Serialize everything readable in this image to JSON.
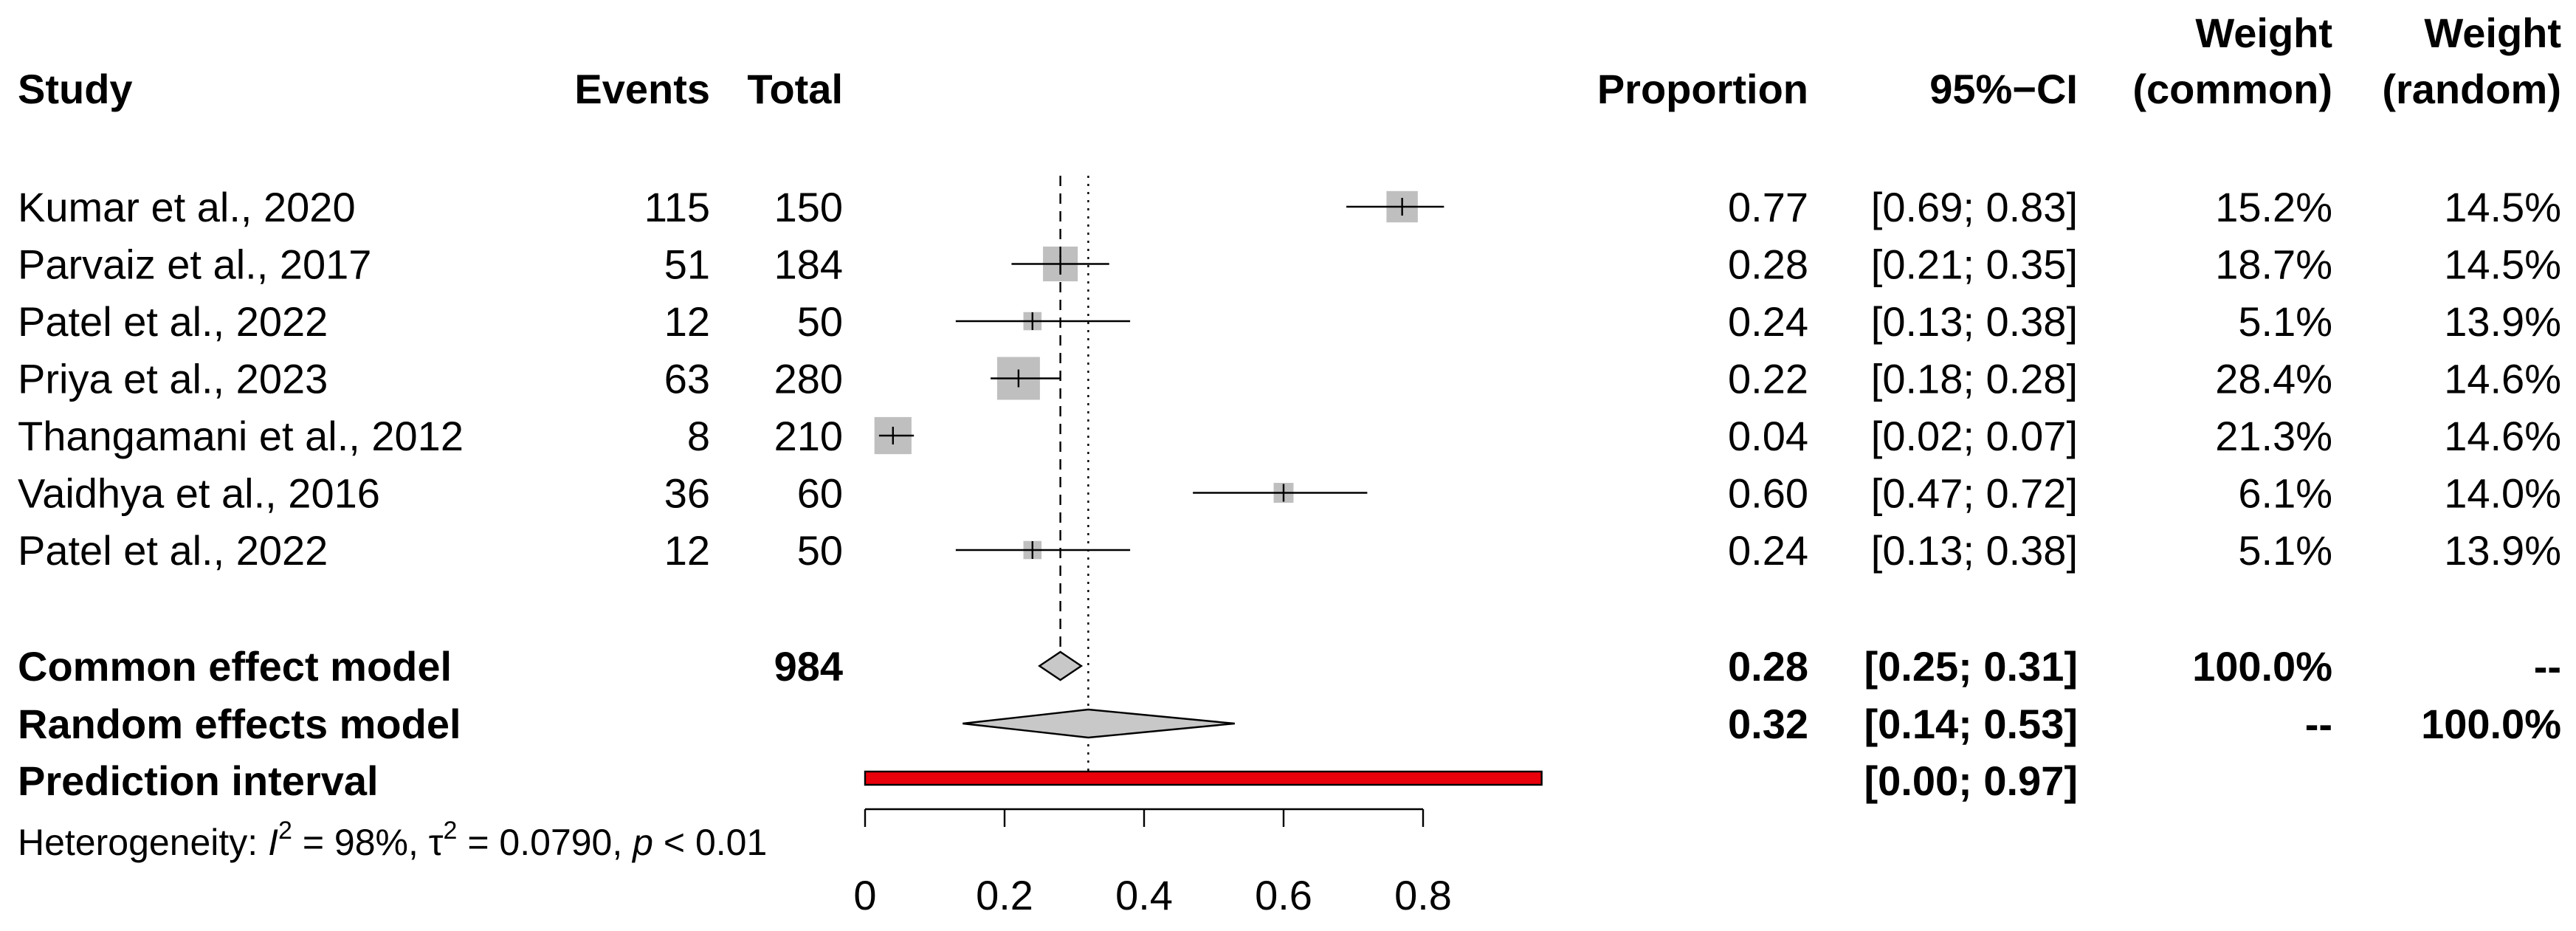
{
  "chart_data": {
    "type": "forest",
    "headers": {
      "study": "Study",
      "events": "Events",
      "total": "Total",
      "proportion": "Proportion",
      "ci": "95%−CI",
      "weight_common_top": "Weight",
      "weight_common_bottom": "(common)",
      "weight_random_top": "Weight",
      "weight_random_bottom": "(random)"
    },
    "studies": [
      {
        "study": "Kumar et al., 2020",
        "events": "115",
        "total": "150",
        "proportion": "0.77",
        "ci": "[0.69; 0.83]",
        "w_common": "15.2%",
        "w_random": "14.5%",
        "est": 0.77,
        "lo": 0.69,
        "hi": 0.83,
        "weight": 15.2
      },
      {
        "study": "Parvaiz et al., 2017",
        "events": "51",
        "total": "184",
        "proportion": "0.28",
        "ci": "[0.21; 0.35]",
        "w_common": "18.7%",
        "w_random": "14.5%",
        "est": 0.28,
        "lo": 0.21,
        "hi": 0.35,
        "weight": 18.7
      },
      {
        "study": "Patel et al., 2022",
        "events": "12",
        "total": "50",
        "proportion": "0.24",
        "ci": "[0.13; 0.38]",
        "w_common": "5.1%",
        "w_random": "13.9%",
        "est": 0.24,
        "lo": 0.13,
        "hi": 0.38,
        "weight": 5.1
      },
      {
        "study": "Priya et al., 2023",
        "events": "63",
        "total": "280",
        "proportion": "0.22",
        "ci": "[0.18; 0.28]",
        "w_common": "28.4%",
        "w_random": "14.6%",
        "est": 0.22,
        "lo": 0.18,
        "hi": 0.28,
        "weight": 28.4
      },
      {
        "study": "Thangamani et al., 2012",
        "events": "8",
        "total": "210",
        "proportion": "0.04",
        "ci": "[0.02; 0.07]",
        "w_common": "21.3%",
        "w_random": "14.6%",
        "est": 0.04,
        "lo": 0.02,
        "hi": 0.07,
        "weight": 21.3
      },
      {
        "study": "Vaidhya et al., 2016",
        "events": "36",
        "total": "60",
        "proportion": "0.60",
        "ci": "[0.47; 0.72]",
        "w_common": "6.1%",
        "w_random": "14.0%",
        "est": 0.6,
        "lo": 0.47,
        "hi": 0.72,
        "weight": 6.1
      },
      {
        "study": "Patel et al., 2022",
        "events": "12",
        "total": "50",
        "proportion": "0.24",
        "ci": "[0.13; 0.38]",
        "w_common": "5.1%",
        "w_random": "13.9%",
        "est": 0.24,
        "lo": 0.13,
        "hi": 0.38,
        "weight": 5.1
      }
    ],
    "common": {
      "label": "Common effect model",
      "total": "984",
      "proportion": "0.28",
      "ci": "[0.25; 0.31]",
      "w_common": "100.0%",
      "w_random": "--",
      "est": 0.28,
      "lo": 0.25,
      "hi": 0.31
    },
    "random": {
      "label": "Random effects model",
      "proportion": "0.32",
      "ci": "[0.14; 0.53]",
      "w_common": "--",
      "w_random": "100.0%",
      "est": 0.32,
      "lo": 0.14,
      "hi": 0.53
    },
    "prediction": {
      "label": "Prediction interval",
      "ci": "[0.00; 0.97]",
      "lo": 0.0,
      "hi": 0.97,
      "color": "#e8000b"
    },
    "heterogeneity": {
      "prefix": "Heterogeneity: ",
      "i2_sym": "I",
      "i2_val": " = 98%, ",
      "tau_sym": "τ",
      "tau_val": " = 0.0790, ",
      "p_sym": "p",
      "p_val": " < 0.01",
      "sup": "2"
    },
    "x_axis": {
      "ticks": [
        0,
        0.2,
        0.4,
        0.6,
        0.8
      ],
      "tick_labels": [
        "0",
        "0.2",
        "0.4",
        "0.6",
        "0.8"
      ],
      "range": [
        0,
        0.8
      ]
    },
    "colors": {
      "square": "#bfbfbf",
      "diamond": "#c8c8c8",
      "line": "#000000"
    }
  }
}
